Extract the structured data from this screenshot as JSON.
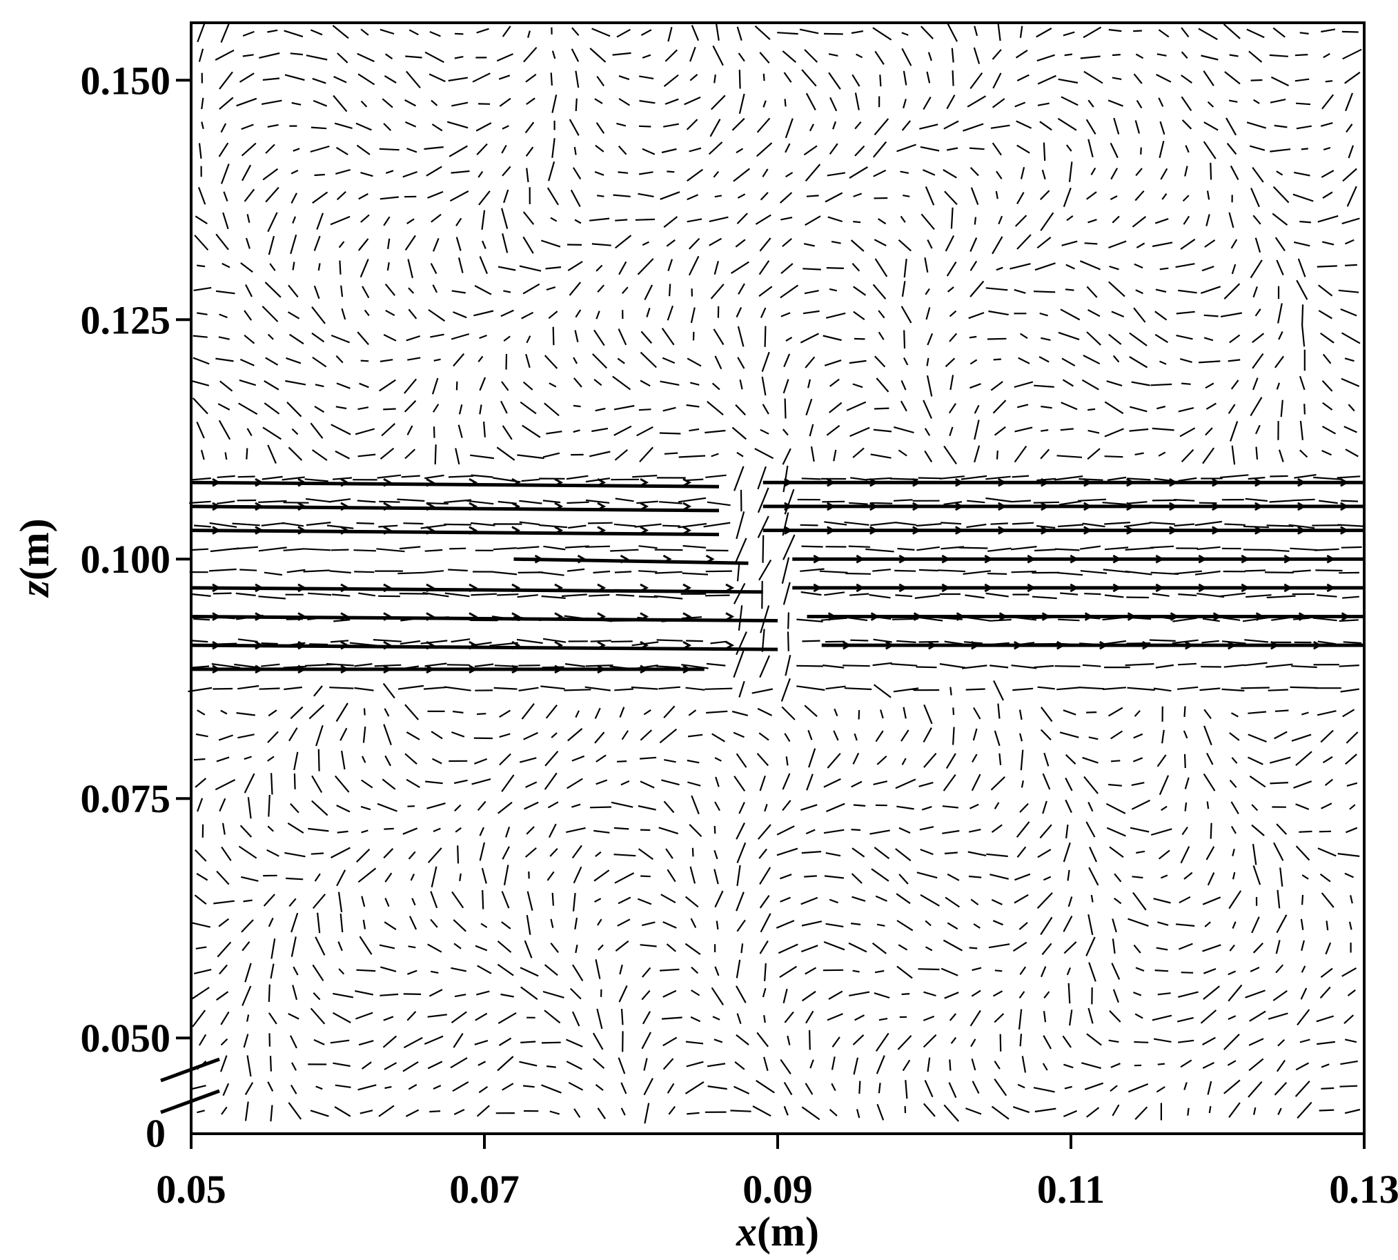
{
  "chart_data": {
    "type": "vector_field",
    "title": "",
    "xlabel_var": "x",
    "xlabel_unit": "(m)",
    "ylabel_var": "z",
    "ylabel_unit": "(m)",
    "xlim": [
      0.05,
      0.13
    ],
    "ylim": [
      0.04,
      0.156
    ],
    "y_axis_break": true,
    "y_break_low_label": "0",
    "x_ticks": [
      {
        "value": 0.05,
        "label": "0.05"
      },
      {
        "value": 0.07,
        "label": "0.07"
      },
      {
        "value": 0.09,
        "label": "0.09"
      },
      {
        "value": 0.11,
        "label": "0.11"
      },
      {
        "value": 0.13,
        "label": "0.13"
      }
    ],
    "y_ticks": [
      {
        "value": 0.05,
        "label": "0.050"
      },
      {
        "value": 0.075,
        "label": "0.075"
      },
      {
        "value": 0.1,
        "label": "0.100"
      },
      {
        "value": 0.125,
        "label": "0.125"
      },
      {
        "value": 0.15,
        "label": "0.150"
      }
    ],
    "jet_streams": [
      {
        "z": 0.108,
        "x_start": 0.05,
        "x_end": 0.13,
        "x_gap": [
          0.086,
          0.089
        ]
      },
      {
        "z": 0.1055,
        "x_start": 0.05,
        "x_end": 0.13,
        "x_gap": [
          0.086,
          0.089
        ]
      },
      {
        "z": 0.103,
        "x_start": 0.05,
        "x_end": 0.13,
        "x_gap": [
          0.086,
          0.089
        ]
      },
      {
        "z": 0.1,
        "x_start": 0.072,
        "x_end": 0.13,
        "x_gap": [
          0.088,
          0.091
        ]
      },
      {
        "z": 0.097,
        "x_start": 0.05,
        "x_end": 0.13,
        "x_gap": [
          0.089,
          0.091
        ]
      },
      {
        "z": 0.094,
        "x_start": 0.05,
        "x_end": 0.13,
        "x_gap": [
          0.09,
          0.092
        ]
      },
      {
        "z": 0.091,
        "x_start": 0.05,
        "x_end": 0.13,
        "x_gap": [
          0.09,
          0.093
        ]
      },
      {
        "z": 0.0885,
        "x_start": 0.05,
        "x_end": 0.085,
        "x_gap": null
      }
    ],
    "grid": false
  }
}
